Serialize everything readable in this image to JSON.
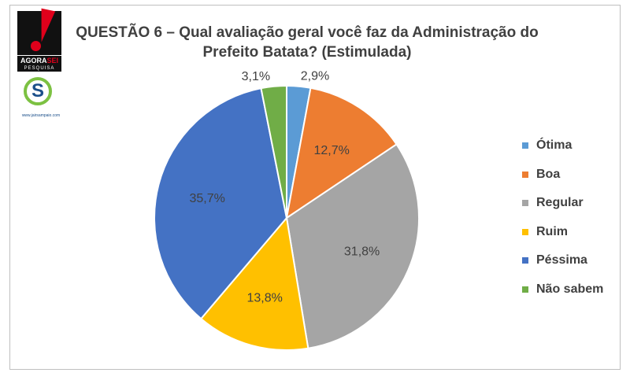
{
  "title": {
    "line1": "QUESTÃO 6 – Qual avaliação geral você faz da Administração do",
    "line2": "Prefeito Batata? (Estimulada)"
  },
  "logos": {
    "agorasei": {
      "word_black": "AGORA",
      "word_red": "SEI",
      "sub": "PESQUISA"
    },
    "jairsampaio": {
      "url": "www.jairsampaio.com"
    }
  },
  "chart_data": {
    "type": "pie",
    "title": "QUESTÃO 6 – Qual avaliação geral você faz da Administração do Prefeito Batata? (Estimulada)",
    "start": "12 o'clock",
    "direction": "clockwise",
    "legend_position": "right",
    "slices": [
      {
        "label": "Ótima",
        "value": 2.9,
        "display": "2,9%",
        "color": "#5b9bd5"
      },
      {
        "label": "Boa",
        "value": 12.7,
        "display": "12,7%",
        "color": "#ed7d31"
      },
      {
        "label": "Regular",
        "value": 31.8,
        "display": "31,8%",
        "color": "#a5a5a5"
      },
      {
        "label": "Ruim",
        "value": 13.8,
        "display": "13,8%",
        "color": "#ffc000"
      },
      {
        "label": "Péssima",
        "value": 35.7,
        "display": "35,7%",
        "color": "#4472c4"
      },
      {
        "label": "Não sabem",
        "value": 3.1,
        "display": "3,1%",
        "color": "#70ad47"
      }
    ]
  }
}
